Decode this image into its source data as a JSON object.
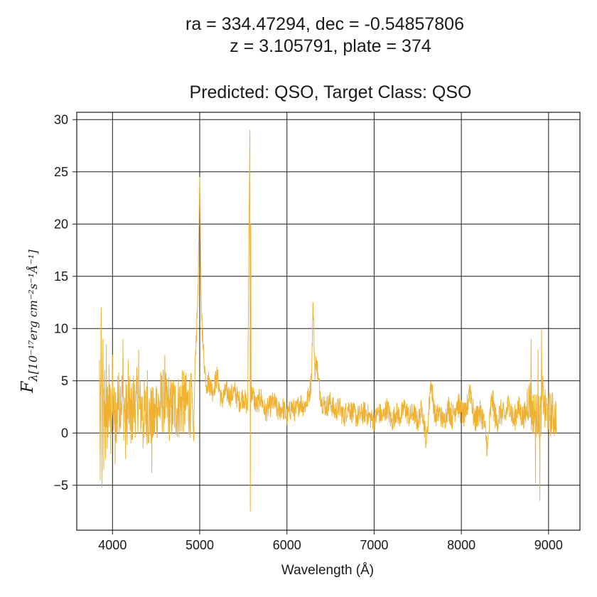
{
  "figure": {
    "title_line1": "ra = 334.47294, dec = -0.54857806",
    "title_line2": "z = 3.105791, plate = 374",
    "title_line3": "Predicted: QSO, Target Class: QSO"
  },
  "chart_data": {
    "type": "line",
    "title": "ra = 334.47294, dec = -0.54857806 / z = 3.105791, plate = 374 / Predicted: QSO, Target Class: QSO",
    "xlabel": "Wavelength (Å)",
    "ylabel_main": "F",
    "ylabel_sub": "λ[10⁻¹⁷erg cm⁻²s⁻¹Å⁻¹]",
    "xlim": [
      3590,
      9360
    ],
    "ylim": [
      -9.3,
      30.7
    ],
    "xticks": [
      4000,
      5000,
      6000,
      7000,
      8000,
      9000
    ],
    "xtick_labels": [
      "4000",
      "5000",
      "6000",
      "7000",
      "8000",
      "9000"
    ],
    "yticks": [
      -5,
      0,
      5,
      10,
      15,
      20,
      25,
      30
    ],
    "ytick_labels": [
      "−5",
      "0",
      "5",
      "10",
      "15",
      "20",
      "25",
      "30"
    ],
    "grid": true,
    "line_color": "#f0b030",
    "series": [
      {
        "x": [
          3850,
          3860,
          3870,
          3880,
          3890,
          3900,
          3910,
          3920,
          3930,
          3940,
          3960,
          3980,
          4000,
          4030,
          4060,
          4090,
          4120,
          4150,
          4180,
          4210,
          4240,
          4270,
          4300,
          4350,
          4400,
          4450,
          4500,
          4550,
          4600,
          4650,
          4700,
          4750,
          4800,
          4850,
          4900,
          4930,
          4950,
          4970,
          4980,
          4990,
          5000,
          5010,
          5020,
          5040,
          5060,
          5080,
          5100,
          5150,
          5200,
          5250,
          5300,
          5350,
          5400,
          5450,
          5500,
          5550,
          5575,
          5580,
          5585,
          5590,
          5600,
          5650,
          5700,
          5750,
          5800,
          5850,
          5900,
          5950,
          6000,
          6050,
          6100,
          6150,
          6200,
          6250,
          6280,
          6300,
          6320,
          6340,
          6360,
          6380,
          6400,
          6450,
          6500,
          6550,
          6600,
          6650,
          6700,
          6750,
          6800,
          6850,
          6900,
          6950,
          7000,
          7050,
          7100,
          7150,
          7200,
          7250,
          7300,
          7350,
          7400,
          7450,
          7500,
          7550,
          7600,
          7650,
          7700,
          7750,
          7800,
          7850,
          7900,
          7950,
          8000,
          8050,
          8100,
          8150,
          8200,
          8250,
          8300,
          8350,
          8400,
          8450,
          8500,
          8550,
          8600,
          8650,
          8700,
          8750,
          8800,
          8850,
          8880,
          8900,
          8920,
          8950,
          9000,
          9050,
          9090
        ],
        "y": [
          7.0,
          -4.5,
          12.0,
          -5.2,
          9.0,
          -3.5,
          6.0,
          -2.5,
          8.5,
          -1.5,
          6.5,
          -2.0,
          7.5,
          -3.0,
          5.5,
          4.5,
          9.0,
          -2.5,
          7.0,
          -1.0,
          5.5,
          3.0,
          8.0,
          -1.5,
          6.0,
          -3.8,
          4.5,
          3.0,
          7.5,
          1.0,
          5.0,
          2.0,
          6.0,
          3.0,
          5.5,
          -0.8,
          7.5,
          11.0,
          14.0,
          18.5,
          24.5,
          16.0,
          12.0,
          8.0,
          6.0,
          4.5,
          5.0,
          4.0,
          5.5,
          3.0,
          4.0,
          3.5,
          4.0,
          3.0,
          3.5,
          2.5,
          29.0,
          -7.5,
          20.0,
          3.0,
          4.0,
          2.5,
          3.5,
          2.0,
          2.5,
          3.0,
          2.0,
          2.5,
          1.5,
          2.5,
          2.0,
          3.0,
          2.5,
          3.5,
          5.0,
          12.5,
          6.0,
          7.0,
          5.0,
          4.0,
          3.0,
          2.5,
          3.0,
          2.0,
          2.5,
          1.5,
          2.5,
          2.0,
          1.5,
          1.8,
          2.0,
          1.5,
          1.2,
          2.0,
          1.5,
          2.5,
          1.0,
          2.0,
          1.5,
          2.5,
          1.5,
          2.0,
          1.0,
          2.5,
          -1.0,
          5.0,
          1.5,
          2.0,
          1.0,
          2.5,
          1.5,
          3.0,
          2.0,
          1.5,
          4.5,
          1.0,
          2.0,
          1.5,
          -1.5,
          3.5,
          1.0,
          2.0,
          1.5,
          3.0,
          1.0,
          2.5,
          1.5,
          2.0,
          9.0,
          -4.8,
          8.0,
          -6.5,
          10.0,
          3.0,
          1.5,
          2.0,
          0.5
        ]
      }
    ]
  }
}
